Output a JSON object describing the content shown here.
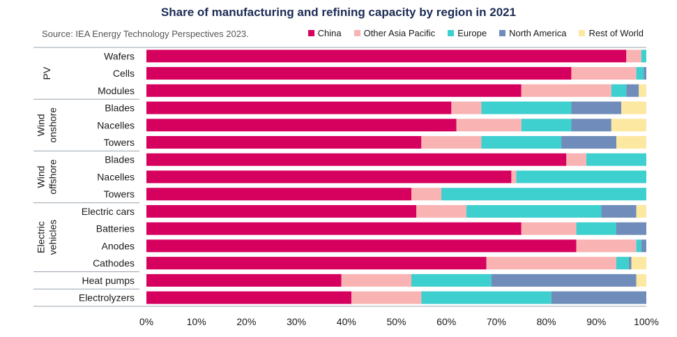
{
  "chart_data": {
    "type": "bar",
    "orientation": "horizontal",
    "stacked": true,
    "title": "Share of manufacturing and refining capacity by region in 2021",
    "source": "Source: IEA Energy Technology Perspectives 2023.",
    "categories": [
      "Wafers",
      "Cells",
      "Modules",
      "Blades",
      "Nacelles",
      "Towers",
      "Blades",
      "Nacelles",
      "Towers",
      "Electric cars",
      "Batteries",
      "Anodes",
      "Cathodes",
      "Heat pumps",
      "Electrolyzers"
    ],
    "groups": [
      {
        "label": [
          "PV"
        ],
        "rows": [
          0,
          2
        ]
      },
      {
        "label": [
          "Wind",
          "onshore"
        ],
        "rows": [
          3,
          5
        ]
      },
      {
        "label": [
          "Wind",
          "offshore"
        ],
        "rows": [
          6,
          8
        ]
      },
      {
        "label": [
          "Electric",
          "vehicles"
        ],
        "rows": [
          9,
          12
        ]
      },
      {
        "label": [],
        "rows": [
          13,
          13
        ]
      },
      {
        "label": [],
        "rows": [
          14,
          14
        ]
      }
    ],
    "series": [
      {
        "name": "China",
        "color": "#d6005e",
        "values": [
          96,
          85,
          75,
          61,
          62,
          55,
          84,
          73,
          53,
          54,
          75,
          86,
          68,
          39,
          41
        ]
      },
      {
        "name": "Other Asia Pacific",
        "color": "#f9b3b3",
        "values": [
          3,
          13,
          18,
          6,
          13,
          12,
          4,
          1,
          6,
          10,
          11,
          12,
          26,
          14,
          14
        ]
      },
      {
        "name": "Europe",
        "color": "#3ecfcf",
        "values": [
          1,
          1.5,
          3,
          18,
          10,
          16,
          12,
          26,
          41,
          27,
          8,
          1,
          2.5,
          16,
          26
        ]
      },
      {
        "name": "North America",
        "color": "#6f8cba",
        "values": [
          0,
          0.5,
          2.5,
          10,
          8,
          11,
          0,
          0,
          0,
          7,
          6,
          1,
          0.5,
          29,
          19
        ]
      },
      {
        "name": "Rest of World",
        "color": "#fce8a0",
        "values": [
          0,
          0,
          1.5,
          5,
          7,
          6,
          0,
          0,
          0,
          2,
          0,
          0,
          3,
          2,
          0
        ]
      }
    ],
    "xlim": [
      0,
      100
    ],
    "xticks": [
      "0%",
      "10%",
      "20%",
      "30%",
      "40%",
      "50%",
      "60%",
      "70%",
      "80%",
      "90%",
      "100%"
    ],
    "legend_position": "top-right",
    "grid": false
  }
}
